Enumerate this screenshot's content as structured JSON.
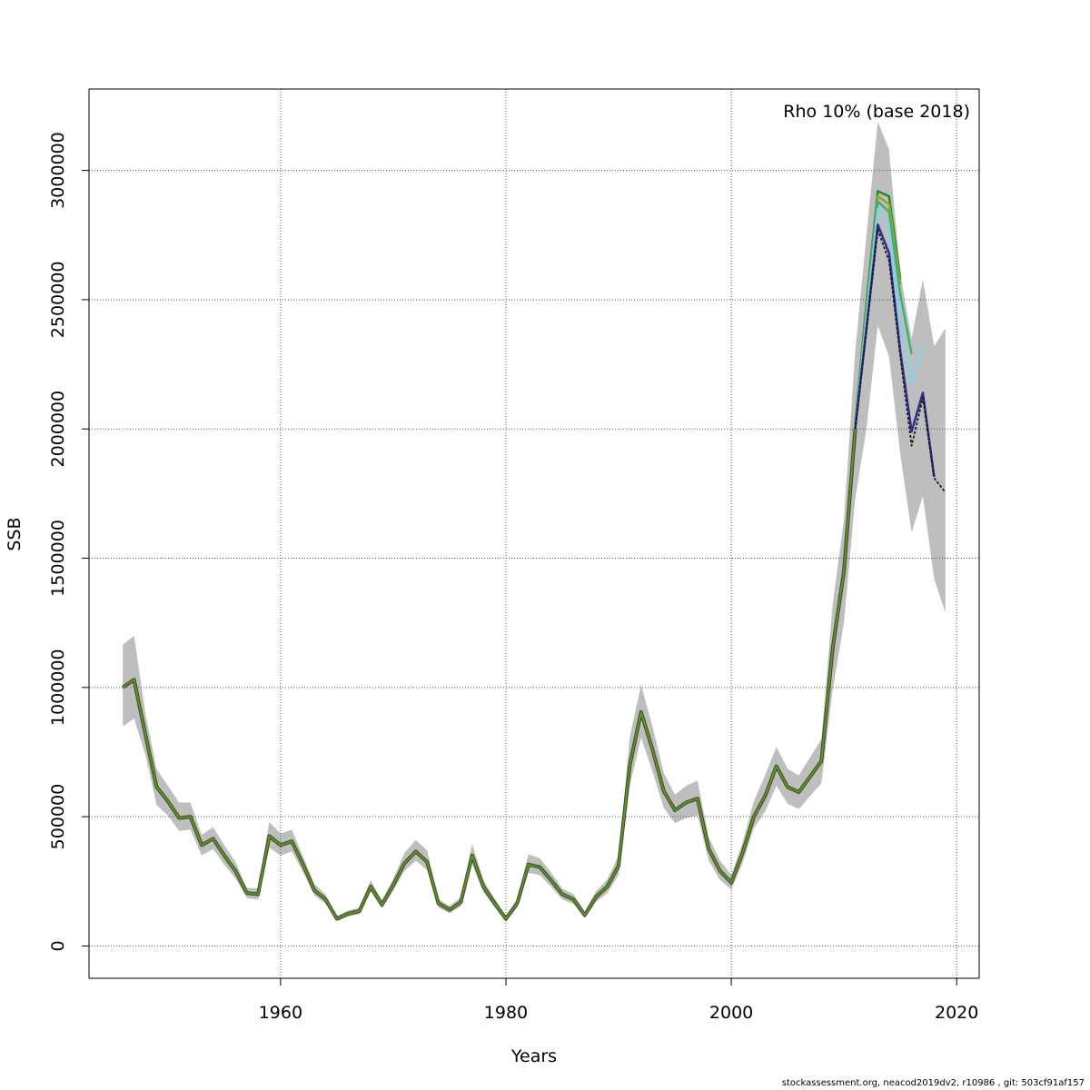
{
  "chart_data": {
    "type": "line",
    "xlabel": "Years",
    "ylabel": "SSB",
    "annotation": "Rho 10% (base 2018)",
    "xlim": [
      1943,
      2022
    ],
    "ylim": [
      -125000,
      3315000
    ],
    "x_ticks": [
      1960,
      1980,
      2000,
      2020
    ],
    "y_ticks": [
      0,
      500000,
      1000000,
      1500000,
      2000000,
      2500000,
      3000000
    ],
    "grid": true,
    "band_color": "#bebebe",
    "base_color": "#1a1a1a",
    "historical_line_color": "#6b8e23",
    "historical": {
      "years": [
        1946,
        1947,
        1948,
        1949,
        1950,
        1951,
        1952,
        1953,
        1954,
        1955,
        1956,
        1957,
        1958,
        1959,
        1960,
        1961,
        1962,
        1963,
        1964,
        1965,
        1966,
        1967,
        1968,
        1969,
        1970,
        1971,
        1972,
        1973,
        1974,
        1975,
        1976,
        1977,
        1978,
        1979,
        1980,
        1981,
        1982,
        1983,
        1984,
        1985,
        1986,
        1987,
        1988,
        1989,
        1990,
        1991,
        1992,
        1993,
        1994,
        1995,
        1996,
        1997,
        1998,
        1999,
        2000,
        2001,
        2002,
        2003,
        2004,
        2005,
        2006,
        2007,
        2008,
        2009,
        2010,
        2011
      ],
      "ssb": [
        1000000,
        1030000,
        820000,
        615000,
        560000,
        495000,
        500000,
        390000,
        415000,
        350000,
        290000,
        205000,
        200000,
        425000,
        390000,
        405000,
        315000,
        215000,
        180000,
        105000,
        125000,
        135000,
        230000,
        160000,
        235000,
        320000,
        365000,
        325000,
        165000,
        140000,
        170000,
        350000,
        230000,
        165000,
        105000,
        165000,
        315000,
        305000,
        255000,
        200000,
        180000,
        120000,
        190000,
        230000,
        310000,
        700000,
        905000,
        760000,
        600000,
        525000,
        555000,
        570000,
        375000,
        290000,
        245000,
        360000,
        500000,
        580000,
        695000,
        615000,
        595000,
        655000,
        715000,
        1150000,
        1450000,
        2000000
      ],
      "lower": [
        850000,
        880000,
        740000,
        545000,
        505000,
        445000,
        450000,
        350000,
        375000,
        315000,
        260000,
        185000,
        180000,
        380000,
        350000,
        365000,
        285000,
        195000,
        163000,
        96000,
        114000,
        123000,
        210000,
        145000,
        213000,
        290000,
        330000,
        293000,
        149000,
        126000,
        153000,
        315000,
        207000,
        148000,
        94000,
        148000,
        283000,
        274000,
        229000,
        180000,
        162000,
        107000,
        170000,
        204000,
        275000,
        620000,
        805000,
        675000,
        535000,
        475000,
        495000,
        505000,
        330000,
        255000,
        218000,
        320000,
        455000,
        520000,
        620000,
        550000,
        530000,
        580000,
        630000,
        990000,
        1250000,
        1730000
      ],
      "upper": [
        1165000,
        1200000,
        900000,
        685000,
        620000,
        555000,
        555000,
        430000,
        460000,
        390000,
        325000,
        225000,
        222000,
        480000,
        435000,
        450000,
        345000,
        240000,
        200000,
        115000,
        138000,
        148000,
        255000,
        176000,
        260000,
        360000,
        410000,
        370000,
        182000,
        155000,
        188000,
        395000,
        255000,
        183000,
        118000,
        182000,
        355000,
        340000,
        285000,
        222000,
        200000,
        133000,
        212000,
        258000,
        350000,
        810000,
        1010000,
        850000,
        670000,
        585000,
        620000,
        640000,
        420000,
        330000,
        275000,
        400000,
        560000,
        660000,
        770000,
        685000,
        660000,
        730000,
        800000,
        1320000,
        1650000,
        2300000
      ]
    },
    "base_band": {
      "years": [
        2011,
        2012,
        2013,
        2014,
        2015,
        2016,
        2017,
        2018,
        2019
      ],
      "lower": [
        1730000,
        2000000,
        2400000,
        2280000,
        1900000,
        1600000,
        1740000,
        1420000,
        1290000
      ],
      "upper": [
        2300000,
        2750000,
        3190000,
        3080000,
        2600000,
        2350000,
        2580000,
        2320000,
        2390000
      ]
    },
    "base_line": {
      "years": [
        2011,
        2012,
        2013,
        2014,
        2015,
        2016,
        2017,
        2018,
        2019
      ],
      "values": [
        2000000,
        2380000,
        2770000,
        2650000,
        2280000,
        1935000,
        2120000,
        1810000,
        1755000
      ]
    },
    "peels": [
      {
        "color": "#2e2e8f",
        "years": [
          2011,
          2012,
          2013,
          2014,
          2015,
          2016,
          2017,
          2018
        ],
        "values": [
          2000000,
          2390000,
          2790000,
          2680000,
          2300000,
          1990000,
          2140000,
          1815000
        ]
      },
      {
        "color": "#87ceeb",
        "years": [
          2011,
          2012,
          2013,
          2014,
          2015,
          2016,
          2017
        ],
        "values": [
          2000000,
          2430000,
          2850000,
          2780000,
          2400000,
          2180000,
          2320000
        ]
      },
      {
        "color": "#3cb371",
        "years": [
          2011,
          2012,
          2013,
          2014,
          2015,
          2016
        ],
        "values": [
          2010000,
          2460000,
          2880000,
          2840000,
          2520000,
          2290000
        ]
      },
      {
        "color": "#9aa12a",
        "years": [
          2011,
          2012,
          2013,
          2014,
          2015
        ],
        "values": [
          2010000,
          2470000,
          2900000,
          2870000,
          2560000
        ]
      },
      {
        "color": "#228b22",
        "years": [
          2011,
          2012,
          2013,
          2014,
          2015
        ],
        "values": [
          2020000,
          2490000,
          2920000,
          2900000,
          2580000
        ]
      }
    ]
  },
  "footer": "stockassessment.org, neacod2019dv2, r10986 , git: 503cf91af157"
}
